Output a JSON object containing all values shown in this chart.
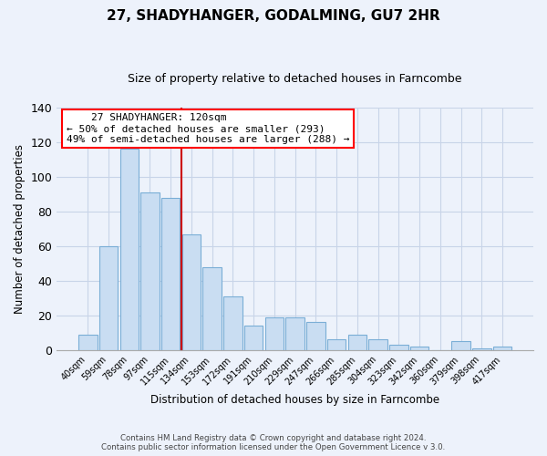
{
  "title": "27, SHADYHANGER, GODALMING, GU7 2HR",
  "subtitle": "Size of property relative to detached houses in Farncombe",
  "xlabel": "Distribution of detached houses by size in Farncombe",
  "ylabel": "Number of detached properties",
  "footer_line1": "Contains HM Land Registry data © Crown copyright and database right 2024.",
  "footer_line2": "Contains public sector information licensed under the Open Government Licence v 3.0.",
  "bar_labels": [
    "40sqm",
    "59sqm",
    "78sqm",
    "97sqm",
    "115sqm",
    "134sqm",
    "153sqm",
    "172sqm",
    "191sqm",
    "210sqm",
    "229sqm",
    "247sqm",
    "266sqm",
    "285sqm",
    "304sqm",
    "323sqm",
    "342sqm",
    "360sqm",
    "379sqm",
    "398sqm",
    "417sqm"
  ],
  "bar_values": [
    9,
    60,
    116,
    91,
    88,
    67,
    48,
    31,
    14,
    19,
    19,
    16,
    6,
    9,
    6,
    3,
    2,
    0,
    5,
    1,
    2
  ],
  "bar_color": "#c9ddf2",
  "bar_edge_color": "#7aaed6",
  "vline_x_index": 4,
  "vline_color": "#cc0000",
  "ylim": [
    0,
    140
  ],
  "yticks": [
    0,
    20,
    40,
    60,
    80,
    100,
    120,
    140
  ],
  "annotation_title": "27 SHADYHANGER: 120sqm",
  "annotation_line1": "← 50% of detached houses are smaller (293)",
  "annotation_line2": "49% of semi-detached houses are larger (288) →",
  "background_color": "#edf2fb",
  "grid_color": "#c8d4e8",
  "title_fontsize": 11,
  "subtitle_fontsize": 9
}
